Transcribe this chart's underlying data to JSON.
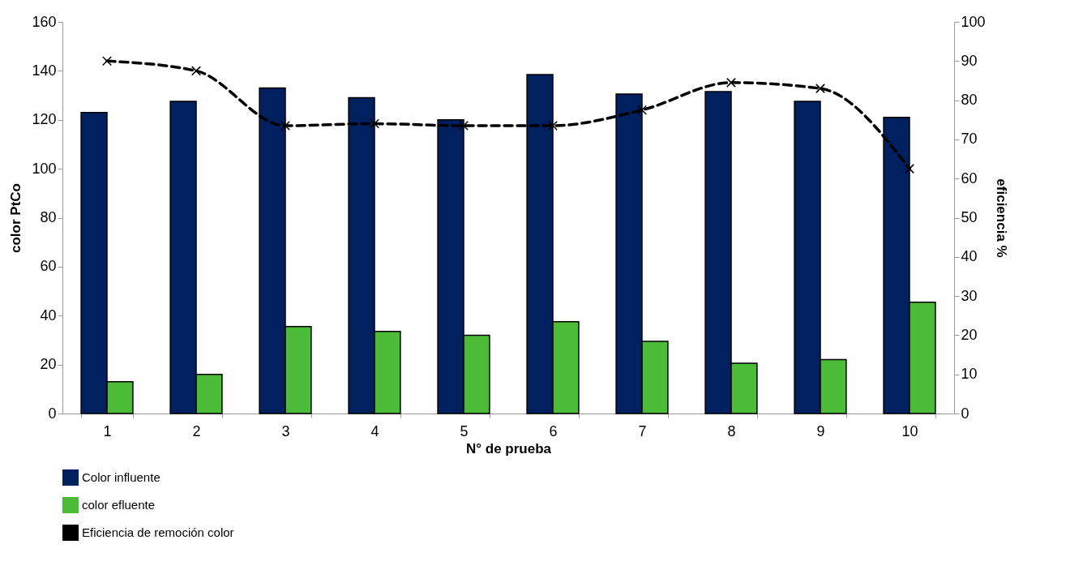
{
  "chart_data": {
    "type": "bar",
    "xlabel": "N° de prueba",
    "ylabel": "color PtCo",
    "y2label": "eficiencia %",
    "categories": [
      "1",
      "2",
      "3",
      "4",
      "5",
      "6",
      "7",
      "8",
      "9",
      "10"
    ],
    "series": [
      {
        "name": "Color influente",
        "color": "#002060",
        "values": [
          123,
          127.5,
          133,
          129,
          120,
          138.5,
          130.5,
          131.5,
          127.5,
          121
        ]
      },
      {
        "name": "color efluente",
        "color": "#4cbb38",
        "values": [
          13,
          16,
          35.5,
          33.5,
          32,
          37.5,
          29.5,
          20.5,
          22,
          45.5
        ]
      },
      {
        "name": "Eficiencia de remoción color",
        "type": "line",
        "axis": "y2",
        "color": "#000000",
        "line_style": "dashed",
        "marker": "cross",
        "values": [
          90,
          87.5,
          73.5,
          74,
          73.5,
          73.5,
          77.5,
          84.5,
          83,
          62.5
        ]
      }
    ],
    "ylim": [
      0,
      160
    ],
    "yticks": [
      0,
      20,
      40,
      60,
      80,
      100,
      120,
      140,
      160
    ],
    "y2lim": [
      0,
      100
    ],
    "y2ticks": [
      0,
      10,
      20,
      30,
      40,
      50,
      60,
      70,
      80,
      90,
      100
    ],
    "grid": false,
    "legend": "bottom"
  }
}
